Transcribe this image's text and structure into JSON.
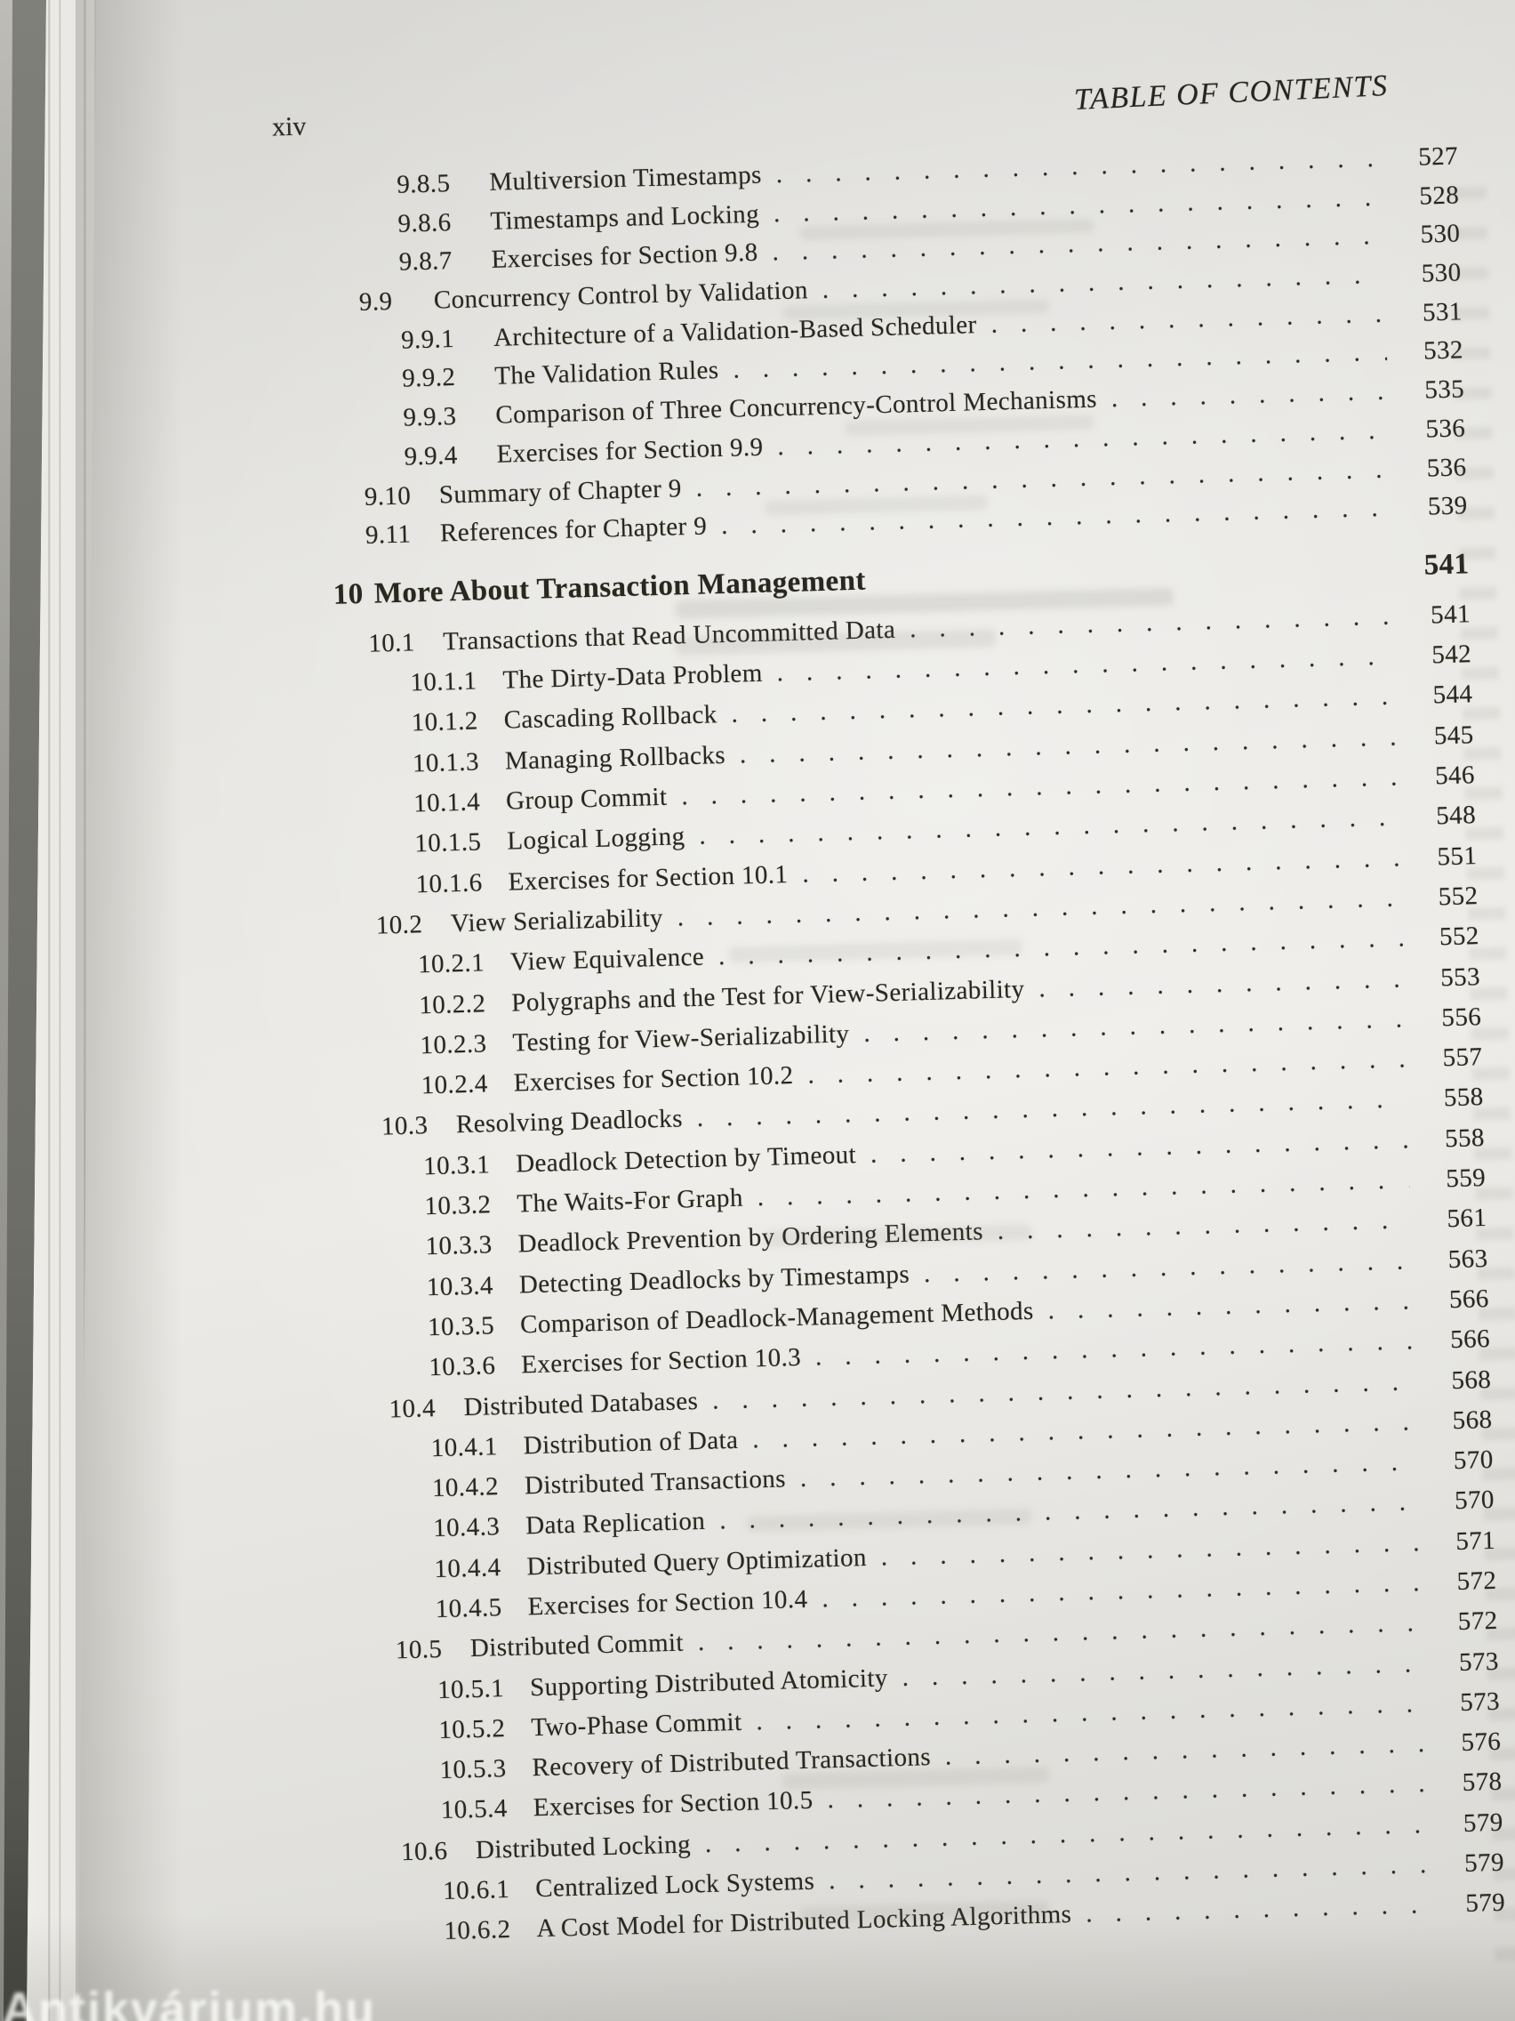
{
  "page": {
    "folio": "xiv",
    "running_header": "TABLE OF CONTENTS",
    "watermark": "Antikvárium.hu"
  },
  "colors": {
    "paper": "#e9e8e4",
    "ink": "#29281f",
    "cover_edge": "#74746e"
  },
  "toc": {
    "entries": [
      {
        "num": "9.8.5",
        "title": "Multiversion Timestamps",
        "page": "527",
        "level": 2
      },
      {
        "num": "9.8.6",
        "title": "Timestamps and Locking",
        "page": "528",
        "level": 2
      },
      {
        "num": "9.8.7",
        "title": "Exercises for Section 9.8",
        "page": "530",
        "level": 2
      },
      {
        "num": "9.9",
        "title": "Concurrency Control by Validation",
        "page": "530",
        "level": 1
      },
      {
        "num": "9.9.1",
        "title": "Architecture of a Validation-Based Scheduler",
        "page": "531",
        "level": 2
      },
      {
        "num": "9.9.2",
        "title": "The Validation Rules",
        "page": "532",
        "level": 2
      },
      {
        "num": "9.9.3",
        "title": "Comparison of Three Concurrency-Control Mechanisms",
        "page": "535",
        "level": 2
      },
      {
        "num": "9.9.4",
        "title": "Exercises for Section 9.9",
        "page": "536",
        "level": 2
      },
      {
        "num": "9.10",
        "title": "Summary of Chapter 9",
        "page": "536",
        "level": 1
      },
      {
        "num": "9.11",
        "title": "References for Chapter 9",
        "page": "539",
        "level": 1
      },
      {
        "num": "10",
        "title": "More About Transaction Management",
        "page": "541",
        "level": 0
      },
      {
        "num": "10.1",
        "title": "Transactions that Read Uncommitted Data",
        "page": "541",
        "level": 1
      },
      {
        "num": "10.1.1",
        "title": "The Dirty-Data Problem",
        "page": "542",
        "level": 2
      },
      {
        "num": "10.1.2",
        "title": "Cascading Rollback",
        "page": "544",
        "level": 2
      },
      {
        "num": "10.1.3",
        "title": "Managing Rollbacks",
        "page": "545",
        "level": 2
      },
      {
        "num": "10.1.4",
        "title": "Group Commit",
        "page": "546",
        "level": 2
      },
      {
        "num": "10.1.5",
        "title": "Logical Logging",
        "page": "548",
        "level": 2
      },
      {
        "num": "10.1.6",
        "title": "Exercises for Section 10.1",
        "page": "551",
        "level": 2
      },
      {
        "num": "10.2",
        "title": "View Serializability",
        "page": "552",
        "level": 1
      },
      {
        "num": "10.2.1",
        "title": "View Equivalence",
        "page": "552",
        "level": 2
      },
      {
        "num": "10.2.2",
        "title": "Polygraphs and the Test for View-Serializability",
        "page": "553",
        "level": 2
      },
      {
        "num": "10.2.3",
        "title": "Testing for View-Serializability",
        "page": "556",
        "level": 2
      },
      {
        "num": "10.2.4",
        "title": "Exercises for Section 10.2",
        "page": "557",
        "level": 2
      },
      {
        "num": "10.3",
        "title": "Resolving Deadlocks",
        "page": "558",
        "level": 1
      },
      {
        "num": "10.3.1",
        "title": "Deadlock Detection by Timeout",
        "page": "558",
        "level": 2
      },
      {
        "num": "10.3.2",
        "title": "The Waits-For Graph",
        "page": "559",
        "level": 2
      },
      {
        "num": "10.3.3",
        "title": "Deadlock Prevention by Ordering Elements",
        "page": "561",
        "level": 2
      },
      {
        "num": "10.3.4",
        "title": "Detecting Deadlocks by Timestamps",
        "page": "563",
        "level": 2
      },
      {
        "num": "10.3.5",
        "title": "Comparison of Deadlock-Management Methods",
        "page": "566",
        "level": 2
      },
      {
        "num": "10.3.6",
        "title": "Exercises for Section 10.3",
        "page": "566",
        "level": 2
      },
      {
        "num": "10.4",
        "title": "Distributed Databases",
        "page": "568",
        "level": 1
      },
      {
        "num": "10.4.1",
        "title": "Distribution of Data",
        "page": "568",
        "level": 2
      },
      {
        "num": "10.4.2",
        "title": "Distributed Transactions",
        "page": "570",
        "level": 2
      },
      {
        "num": "10.4.3",
        "title": "Data Replication",
        "page": "570",
        "level": 2
      },
      {
        "num": "10.4.4",
        "title": "Distributed Query Optimization",
        "page": "571",
        "level": 2
      },
      {
        "num": "10.4.5",
        "title": "Exercises for Section 10.4",
        "page": "572",
        "level": 2
      },
      {
        "num": "10.5",
        "title": "Distributed Commit",
        "page": "572",
        "level": 1
      },
      {
        "num": "10.5.1",
        "title": "Supporting Distributed Atomicity",
        "page": "573",
        "level": 2
      },
      {
        "num": "10.5.2",
        "title": "Two-Phase Commit",
        "page": "573",
        "level": 2
      },
      {
        "num": "10.5.3",
        "title": "Recovery of Distributed Transactions",
        "page": "576",
        "level": 2
      },
      {
        "num": "10.5.4",
        "title": "Exercises for Section 10.5",
        "page": "578",
        "level": 2
      },
      {
        "num": "10.6",
        "title": "Distributed Locking",
        "page": "579",
        "level": 1
      },
      {
        "num": "10.6.1",
        "title": "Centralized Lock Systems",
        "page": "579",
        "level": 2
      },
      {
        "num": "10.6.2",
        "title": "A Cost Model for Distributed Locking Algorithms",
        "page": "579",
        "level": 2
      }
    ]
  }
}
